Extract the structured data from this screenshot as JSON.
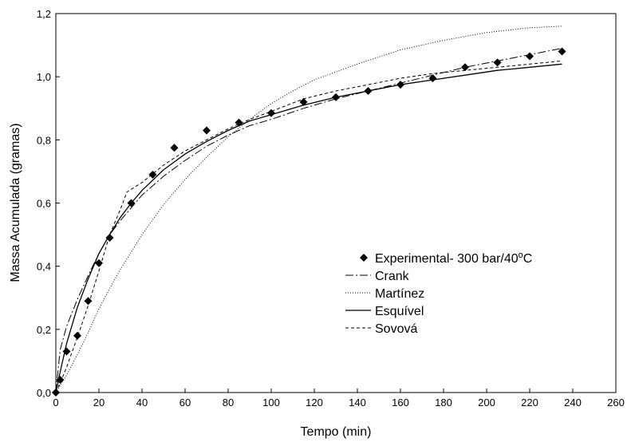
{
  "chart_data": {
    "type": "line",
    "xlabel": "Tempo (min)",
    "ylabel": "Massa Acumulada (gramas)",
    "xlim": [
      0,
      260
    ],
    "ylim": [
      0,
      1.2
    ],
    "x_ticks": [
      "0",
      "20",
      "40",
      "60",
      "80",
      "100",
      "120",
      "140",
      "160",
      "180",
      "200",
      "220",
      "240",
      "260"
    ],
    "y_ticks": [
      "0,0",
      "0,2",
      "0,4",
      "0,6",
      "0,8",
      "1,0",
      "1,2"
    ],
    "grid": false,
    "legend_position": "lower-right",
    "legend_entries": [
      {
        "label_main": "Experimental- 300 bar/40",
        "label_sup": "o",
        "label_tail": "C",
        "style": "diamond"
      },
      {
        "label": "Crank",
        "style": "dash-dot"
      },
      {
        "label": "Martínez",
        "style": "dotted"
      },
      {
        "label": "Esquível",
        "style": "solid"
      },
      {
        "label": "Sovová",
        "style": "dashed"
      }
    ],
    "series": [
      {
        "name": "Experimental- 300 bar/40oC",
        "style": "diamond",
        "x": [
          0,
          2,
          5,
          10,
          15,
          20,
          25,
          35,
          45,
          55,
          70,
          85,
          100,
          115,
          130,
          145,
          160,
          175,
          190,
          205,
          220,
          235
        ],
        "y": [
          0.0,
          0.04,
          0.13,
          0.18,
          0.29,
          0.41,
          0.49,
          0.6,
          0.69,
          0.775,
          0.83,
          0.855,
          0.885,
          0.92,
          0.935,
          0.955,
          0.975,
          0.995,
          1.03,
          1.045,
          1.065,
          1.08
        ]
      },
      {
        "name": "Crank",
        "style": "dash-dot",
        "x": [
          0,
          2,
          5,
          10,
          15,
          20,
          25,
          30,
          35,
          40,
          50,
          60,
          70,
          80,
          90,
          100,
          115,
          130,
          145,
          160,
          175,
          190,
          205,
          220,
          235
        ],
        "y": [
          0.0,
          0.135,
          0.21,
          0.295,
          0.37,
          0.44,
          0.5,
          0.545,
          0.585,
          0.625,
          0.685,
          0.735,
          0.78,
          0.815,
          0.845,
          0.865,
          0.9,
          0.93,
          0.955,
          0.98,
          1.005,
          1.03,
          1.05,
          1.07,
          1.09
        ]
      },
      {
        "name": "Martínez",
        "style": "dotted",
        "x": [
          0,
          5,
          10,
          15,
          20,
          25,
          30,
          40,
          50,
          60,
          70,
          80,
          90,
          100,
          110,
          120,
          140,
          160,
          180,
          200,
          220,
          235
        ],
        "y": [
          0.0,
          0.055,
          0.12,
          0.19,
          0.265,
          0.33,
          0.39,
          0.5,
          0.595,
          0.675,
          0.745,
          0.81,
          0.865,
          0.915,
          0.955,
          0.99,
          1.04,
          1.085,
          1.115,
          1.14,
          1.155,
          1.16
        ]
      },
      {
        "name": "Esquível",
        "style": "solid",
        "x": [
          0,
          2,
          5,
          10,
          15,
          20,
          25,
          30,
          35,
          40,
          50,
          60,
          70,
          80,
          90,
          100,
          115,
          130,
          145,
          160,
          175,
          190,
          205,
          220,
          235
        ],
        "y": [
          0.0,
          0.065,
          0.155,
          0.27,
          0.36,
          0.44,
          0.5,
          0.555,
          0.6,
          0.64,
          0.705,
          0.755,
          0.795,
          0.83,
          0.86,
          0.88,
          0.91,
          0.935,
          0.955,
          0.975,
          0.99,
          1.005,
          1.02,
          1.03,
          1.04
        ]
      },
      {
        "name": "Sovová",
        "style": "dashed",
        "x": [
          0,
          2,
          5,
          10,
          15,
          20,
          25,
          30,
          33,
          40,
          50,
          60,
          70,
          80,
          90,
          100,
          115,
          130,
          145,
          160,
          175,
          190,
          205,
          220,
          235
        ],
        "y": [
          0.0,
          0.03,
          0.08,
          0.175,
          0.275,
          0.385,
          0.5,
          0.58,
          0.635,
          0.665,
          0.72,
          0.765,
          0.8,
          0.835,
          0.865,
          0.89,
          0.93,
          0.955,
          0.975,
          0.995,
          1.01,
          1.02,
          1.03,
          1.04,
          1.05
        ]
      }
    ]
  }
}
